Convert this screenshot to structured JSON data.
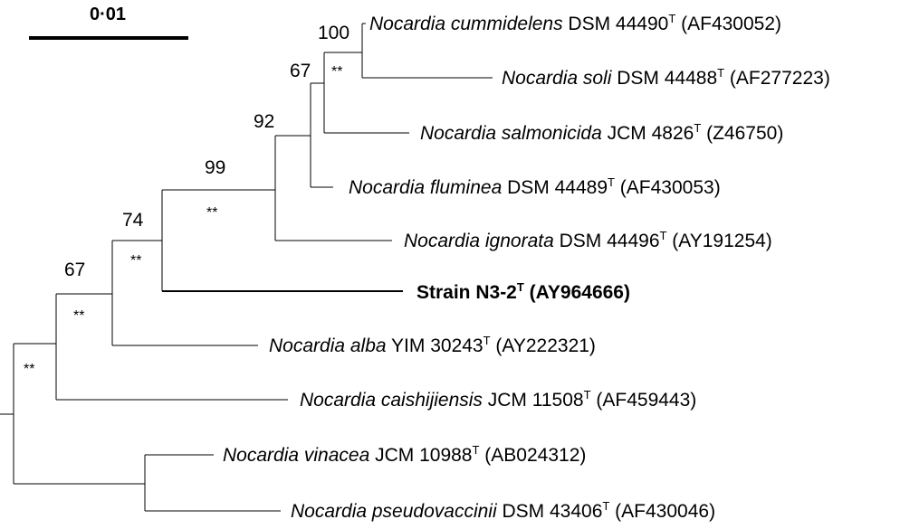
{
  "scale": {
    "label": "0·01"
  },
  "bootstraps": {
    "n100": "100",
    "n67a": "67",
    "n92": "92",
    "n99": "99",
    "n74": "74",
    "n67b": "67"
  },
  "marks": {
    "m1": "**",
    "m2": "**",
    "m3": "**",
    "m4": "**",
    "m5": "**"
  },
  "taxa": [
    {
      "genus": "Nocardia cummidelens",
      "strain": " DSM 44490",
      "sup": "T",
      "acc": " (AF430052)"
    },
    {
      "genus": "Nocardia soli",
      "strain": " DSM 44488",
      "sup": "T",
      "acc": " (AF277223)"
    },
    {
      "genus": "Nocardia salmonicida",
      "strain": " JCM 4826",
      "sup": "T",
      "acc": " (Z46750)"
    },
    {
      "genus": "Nocardia fluminea",
      "strain": " DSM 44489",
      "sup": "T",
      "acc": " (AF430053)"
    },
    {
      "genus": "Nocardia ignorata",
      "strain": " DSM 44496",
      "sup": "T",
      "acc": " (AY191254)"
    },
    {
      "genus": "",
      "strain": "Strain N3-2",
      "sup": "T",
      "acc": " (AY964666)"
    },
    {
      "genus": "Nocardia alba",
      "strain": " YIM 30243",
      "sup": "T",
      "acc": " (AY222321)"
    },
    {
      "genus": "Nocardia caishijiensis",
      "strain": " JCM 11508",
      "sup": "T",
      "acc": " (AF459443)"
    },
    {
      "genus": "Nocardia vinacea",
      "strain": " JCM 10988",
      "sup": "T",
      "acc": " (AB024312)"
    },
    {
      "genus": "Nocardia pseudovaccinii",
      "strain": " DSM 43406",
      "sup": "T",
      "acc": " (AF430046)"
    }
  ]
}
